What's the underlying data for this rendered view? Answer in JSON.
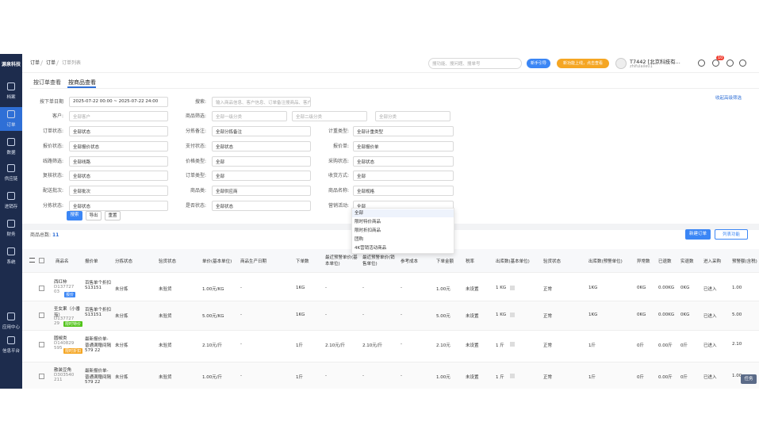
{
  "sidebar": {
    "logo": "源泉科技",
    "items": [
      "档案",
      "订单",
      "数据",
      "供应链",
      "进销存",
      "财务",
      "系统",
      "应用中心",
      "信息平台"
    ]
  },
  "topbar": {
    "breadcrumb": [
      "订单",
      "订单",
      "订单列表"
    ],
    "search_placeholder": "搜功能、搜问题、搜单号",
    "guide_button": "新手引导",
    "new_feature_button": "新功能上线，点击查看",
    "user_name": "T7442 [北京科技有...",
    "user_account": "zhifulaile01",
    "badge": "10"
  },
  "tabs": [
    "按订单查看",
    "按商品查看"
  ],
  "advanced_search": "收起高级筛选",
  "filters": [
    [
      {
        "label": "按下单日期",
        "value": "2025-07-22 00:00 ~ 2025-07-22 24:00"
      },
      {
        "label": "搜索:",
        "value": "输入商品信息、客户信息、订单备注搜商品、客户"
      }
    ],
    [
      {
        "label": "客户:",
        "value": "全部客户"
      },
      {
        "label": "商品筛选:",
        "value": "全部一级分类"
      },
      {
        "value": "全部二级分类"
      },
      {
        "value": "全部分类"
      }
    ],
    [
      {
        "label": "订单状态:",
        "value": "全部状态"
      },
      {
        "label": "分拣备注:",
        "value": "全部分拣备注"
      },
      {
        "label": "计重类型:",
        "value": "全部计重类型"
      }
    ],
    [
      {
        "label": "报价状态:",
        "value": "全部报价状态"
      },
      {
        "label": "支付状态:",
        "value": "全部状态"
      },
      {
        "label": "报价单:",
        "value": "全部报价单"
      }
    ],
    [
      {
        "label": "线路筛选:",
        "value": "全部线路"
      },
      {
        "label": "价格类型:",
        "value": "全部"
      },
      {
        "label": "采购状态:",
        "value": "全部状态"
      }
    ],
    [
      {
        "label": "复核状态:",
        "value": "全部状态"
      },
      {
        "label": "订单类型:",
        "value": "全部"
      },
      {
        "label": "收货方式:",
        "value": "全部"
      }
    ],
    [
      {
        "label": "配送批次:",
        "value": "全部批次"
      },
      {
        "label": "商品类:",
        "value": "全部供应商"
      },
      {
        "label": "商品名称:",
        "value": "全部规格"
      }
    ],
    [
      {
        "label": "分拣状态:",
        "value": "全部状态"
      },
      {
        "label": "是否状态:",
        "value": "全部状态"
      },
      {
        "label": "营销活动:",
        "value": "全部"
      }
    ]
  ],
  "buttons": [
    "搜索",
    "导出",
    "重置"
  ],
  "dropdown_options": [
    "全部",
    "限时特价商品",
    "限时折扣商品",
    "团购",
    "4K营销活动商品"
  ],
  "summary": {
    "label": "商品总数:",
    "value": "11"
  },
  "table_buttons": [
    "新建订单",
    "列表功能"
  ],
  "table": {
    "columns": [
      "商品名",
      "报价单",
      "分拣状态",
      "验货状态",
      "单价(基本单位)",
      "商品生产日期",
      "下单数",
      "最近预警单价(基本单位)",
      "最近预警单价(销售单位)",
      "参考成本",
      "下单金额",
      "税率",
      "出库数(基本单位)",
      "验货状态",
      "出库数(预警单位)",
      "异常数",
      "已退数",
      "实退数",
      "进入采购",
      "预警额(含税)"
    ],
    "rows": [
      {
        "name": "西红柿",
        "code": "D137727 03",
        "tag": "报价",
        "cells": [
          "百售单个折扣S13151",
          "未分拣",
          "未验货",
          "1.00元/KG",
          "-",
          "1KG",
          "-",
          "-",
          "-",
          "1.00元",
          "未设置",
          "1 KG",
          "正常",
          "1KG",
          "0KG",
          "0.00KG",
          "0KG",
          "已进入",
          "1.00"
        ]
      },
      {
        "name": "圣女果（小番茄）",
        "code": "D137727 29",
        "tag": "限时特价",
        "cells": [
          "百售单个折扣S13151",
          "未分拣",
          "未验货",
          "5.00元/KG",
          "-",
          "1KG",
          "-",
          "-",
          "-",
          "5.00元",
          "未设置",
          "1 KG",
          "正常",
          "1KG",
          "0KG",
          "0.00KG",
          "0KG",
          "已进入",
          "5.00"
        ]
      },
      {
        "name": "圆椒类",
        "code": "D140829 595",
        "tag": "限时折扣",
        "cells": [
          "最新报价单-普通满赠间隔579 22",
          "未分拣",
          "未验货",
          "2.10元/斤",
          "-",
          "1斤",
          "2.10元/斤",
          "2.10元/斤",
          "-",
          "2.10元",
          "未设置",
          "1 斤",
          "正常",
          "1斤",
          "0斤",
          "0.00斤",
          "0斤",
          "已进入",
          "2.10"
        ]
      },
      {
        "name": "散装豆角",
        "code": "D303540 211",
        "cells": [
          "最新报价单-普通满赠间隔579 22",
          "未分拣",
          "未验货",
          "1.00元/斤",
          "-",
          "1斤",
          "-",
          "-",
          "-",
          "1.00元",
          "未设置",
          "1 斤",
          "正常",
          "1斤",
          "0斤",
          "0.00斤",
          "0斤",
          "已进入",
          "1.00"
        ]
      }
    ]
  },
  "float_button": "任务"
}
